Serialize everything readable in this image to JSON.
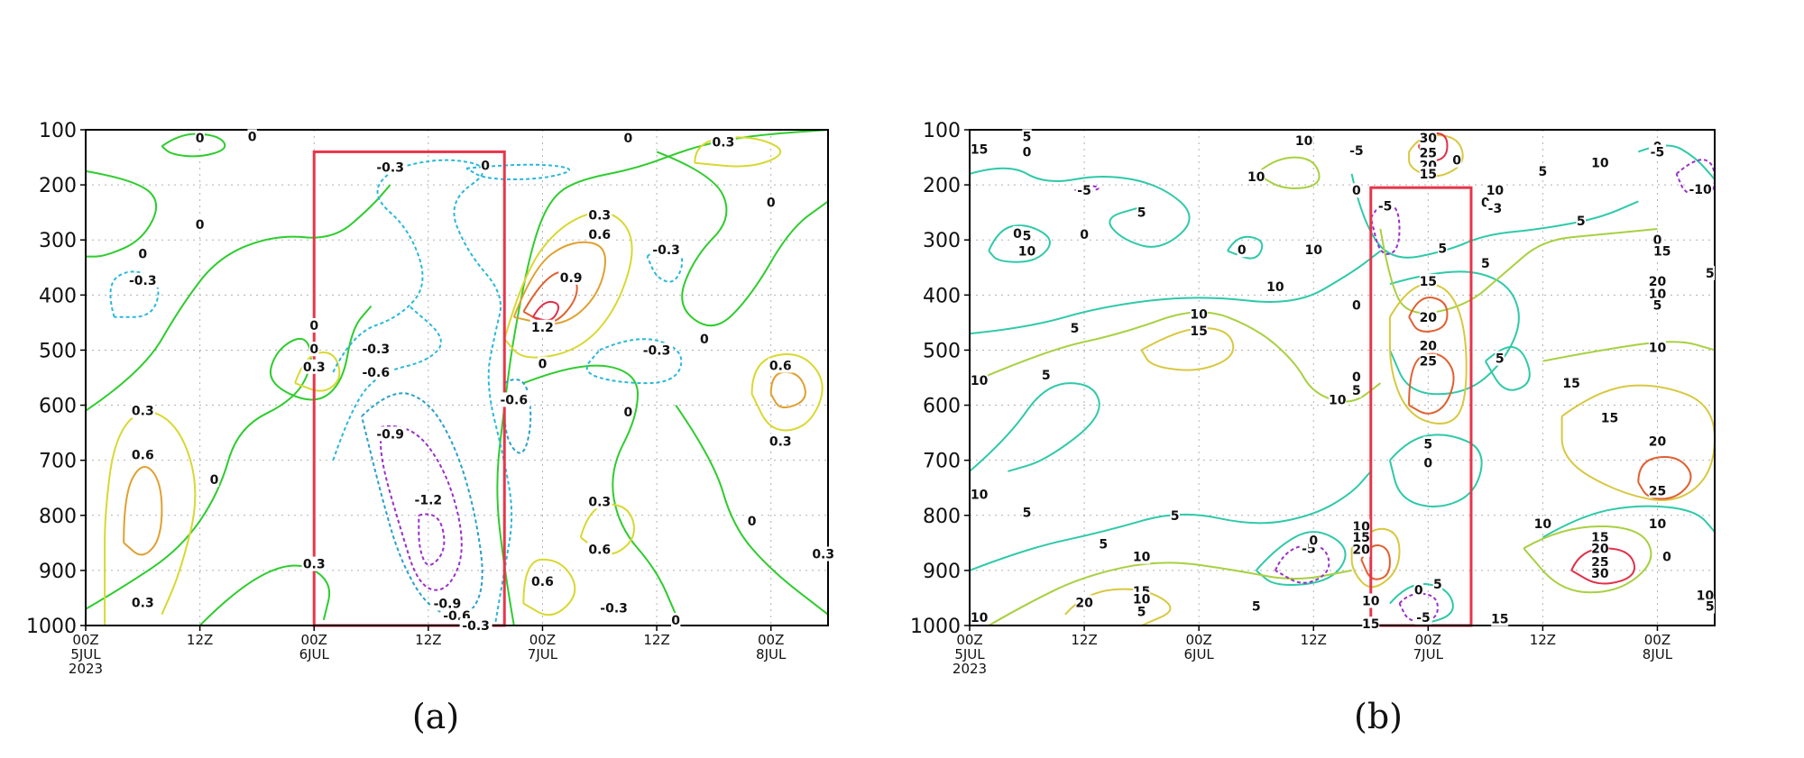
{
  "colors": {
    "contour_0": "#2ecc2e",
    "contour_pos_03": "#d8d832",
    "contour_pos_06": "#e0a030",
    "contour_pos_09": "#e06030",
    "contour_pos_12": "#e0304a",
    "contour_neg_03": "#2ab8d8",
    "contour_neg_06": "#2aa0c8",
    "contour_neg_09": "#9930c8",
    "contour_5": "#2ec9a8",
    "contour_10": "#a8d040",
    "contour_15": "#d8c840",
    "highlight_box": "#e8354a"
  },
  "chart_data": [
    {
      "type": "contour",
      "panel_label": "(a)",
      "x_ticks": [
        "00Z",
        "12Z",
        "00Z",
        "12Z",
        "00Z",
        "12Z",
        "00Z"
      ],
      "x_day_labels": [
        "5JUL",
        "6JUL",
        "7JUL",
        "8JUL"
      ],
      "x_year_label": "2023",
      "y_ticks": [
        "100",
        "200",
        "300",
        "400",
        "500",
        "600",
        "700",
        "800",
        "900",
        "1000"
      ],
      "ylim": [
        1000,
        100
      ],
      "grid": true,
      "highlight_box": {
        "x_range_hours": [
          24,
          44
        ],
        "y_range": [
          140,
          1000
        ]
      },
      "contour_labels": [
        {
          "text": "0",
          "t": 12,
          "p": 115
        },
        {
          "text": "0",
          "t": 17.5,
          "p": 112
        },
        {
          "text": "0",
          "t": 12,
          "p": 272
        },
        {
          "text": "0",
          "t": 6,
          "p": 325
        },
        {
          "text": "-0.3",
          "t": 6,
          "p": 373
        },
        {
          "text": "0",
          "t": 24,
          "p": 455
        },
        {
          "text": "0",
          "t": 24,
          "p": 498
        },
        {
          "text": "0.3",
          "t": 24,
          "p": 530
        },
        {
          "text": "-0.3",
          "t": 30.5,
          "p": 498
        },
        {
          "text": "-0.6",
          "t": 30.5,
          "p": 540
        },
        {
          "text": "-0.3",
          "t": 32,
          "p": 168
        },
        {
          "text": "0",
          "t": 42,
          "p": 165
        },
        {
          "text": "-0.9",
          "t": 32,
          "p": 652
        },
        {
          "text": "-1.2",
          "t": 36,
          "p": 772
        },
        {
          "text": "-0.9",
          "t": 38,
          "p": 960
        },
        {
          "text": "-0.6",
          "t": 39,
          "p": 982
        },
        {
          "text": "-0.3",
          "t": 41,
          "p": 1002
        },
        {
          "text": "-0.6",
          "t": 45,
          "p": 590
        },
        {
          "text": "0.3",
          "t": 6,
          "p": 610
        },
        {
          "text": "0.6",
          "t": 6,
          "p": 690
        },
        {
          "text": "0",
          "t": 13.5,
          "p": 735
        },
        {
          "text": "0.3",
          "t": 6,
          "p": 958
        },
        {
          "text": "0.3",
          "t": 24,
          "p": 888
        },
        {
          "text": "0.3",
          "t": 54,
          "p": 255
        },
        {
          "text": "0.6",
          "t": 54,
          "p": 290
        },
        {
          "text": "0.9",
          "t": 51,
          "p": 368
        },
        {
          "text": "1.2",
          "t": 48,
          "p": 458
        },
        {
          "text": "0",
          "t": 48,
          "p": 525
        },
        {
          "text": "-0.3",
          "t": 60,
          "p": 500
        },
        {
          "text": "0",
          "t": 57,
          "p": 115
        },
        {
          "text": "-0.3",
          "t": 61,
          "p": 318
        },
        {
          "text": "0",
          "t": 65,
          "p": 480
        },
        {
          "text": "0",
          "t": 57,
          "p": 612
        },
        {
          "text": "0.3",
          "t": 54,
          "p": 775
        },
        {
          "text": "0.6",
          "t": 54,
          "p": 862
        },
        {
          "text": "0.6",
          "t": 48,
          "p": 920
        },
        {
          "text": "-0.3",
          "t": 55.5,
          "p": 968
        },
        {
          "text": "0",
          "t": 62,
          "p": 990
        },
        {
          "text": "0.3",
          "t": 67,
          "p": 122
        },
        {
          "text": "0",
          "t": 72,
          "p": 232
        },
        {
          "text": "0.6",
          "t": 73,
          "p": 528
        },
        {
          "text": "0.3",
          "t": 73,
          "p": 665
        },
        {
          "text": "0",
          "t": 70,
          "p": 810
        },
        {
          "text": "0.3",
          "t": 77.5,
          "p": 870
        }
      ]
    },
    {
      "type": "contour",
      "panel_label": "(b)",
      "x_ticks": [
        "00Z",
        "12Z",
        "00Z",
        "12Z",
        "00Z",
        "12Z",
        "00Z"
      ],
      "x_day_labels": [
        "5JUL",
        "6JUL",
        "7JUL",
        "8JUL"
      ],
      "x_year_label": "2023",
      "y_ticks": [
        "100",
        "200",
        "300",
        "400",
        "500",
        "600",
        "700",
        "800",
        "900",
        "1000"
      ],
      "ylim": [
        1000,
        100
      ],
      "grid": true,
      "highlight_box": {
        "x_range_hours": [
          42,
          52.5
        ],
        "y_range": [
          205,
          1000
        ]
      },
      "contour_labels": [
        {
          "text": "5",
          "t": 6,
          "p": 112
        },
        {
          "text": "0",
          "t": 6,
          "p": 140
        },
        {
          "text": "-5",
          "t": 12,
          "p": 210
        },
        {
          "text": "5",
          "t": 18,
          "p": 250
        },
        {
          "text": "0",
          "t": 5,
          "p": 288
        },
        {
          "text": "5",
          "t": 6,
          "p": 292
        },
        {
          "text": "0",
          "t": 12,
          "p": 290
        },
        {
          "text": "10",
          "t": 6,
          "p": 320
        },
        {
          "text": "10",
          "t": 35,
          "p": 120
        },
        {
          "text": "10",
          "t": 30,
          "p": 185
        },
        {
          "text": "0",
          "t": 28.5,
          "p": 318
        },
        {
          "text": "10",
          "t": 36,
          "p": 318
        },
        {
          "text": "10",
          "t": 32,
          "p": 385
        },
        {
          "text": "5",
          "t": 11,
          "p": 460
        },
        {
          "text": "10",
          "t": 24,
          "p": 435
        },
        {
          "text": "15",
          "t": 24,
          "p": 465
        },
        {
          "text": "5",
          "t": 8,
          "p": 545
        },
        {
          "text": "10",
          "t": 38.5,
          "p": 590
        },
        {
          "text": "-5",
          "t": 40.5,
          "p": 138
        },
        {
          "text": "30",
          "t": 48,
          "p": 115
        },
        {
          "text": "25",
          "t": 48,
          "p": 142
        },
        {
          "text": "20",
          "t": 48,
          "p": 165
        },
        {
          "text": "15",
          "t": 48,
          "p": 180
        },
        {
          "text": "0",
          "t": 51,
          "p": 155
        },
        {
          "text": "5",
          "t": 60,
          "p": 175
        },
        {
          "text": "10",
          "t": 66,
          "p": 160
        },
        {
          "text": "0",
          "t": 72,
          "p": 130
        },
        {
          "text": "0",
          "t": 40.5,
          "p": 210
        },
        {
          "text": "-5",
          "t": 43.5,
          "p": 238
        },
        {
          "text": "10",
          "t": 55,
          "p": 210
        },
        {
          "text": "0",
          "t": 54,
          "p": 232
        },
        {
          "text": "-3",
          "t": 55,
          "p": 242
        },
        {
          "text": "5",
          "t": 64,
          "p": 265
        },
        {
          "text": "5",
          "t": 49.5,
          "p": 315
        },
        {
          "text": "5",
          "t": 54,
          "p": 342
        },
        {
          "text": "15",
          "t": 48,
          "p": 375
        },
        {
          "text": "0",
          "t": 40.5,
          "p": 418
        },
        {
          "text": "20",
          "t": 48,
          "p": 440
        },
        {
          "text": "20",
          "t": 48,
          "p": 492
        },
        {
          "text": "5",
          "t": 55.5,
          "p": 515
        },
        {
          "text": "25",
          "t": 48,
          "p": 520
        },
        {
          "text": "0",
          "t": 40.5,
          "p": 548
        },
        {
          "text": "5",
          "t": 40.5,
          "p": 573
        },
        {
          "text": "5",
          "t": 48,
          "p": 670
        },
        {
          "text": "0",
          "t": 48,
          "p": 705
        },
        {
          "text": "10",
          "t": 72,
          "p": 495
        },
        {
          "text": "15",
          "t": 63,
          "p": 560
        },
        {
          "text": "15",
          "t": 67,
          "p": 623
        },
        {
          "text": "20",
          "t": 72,
          "p": 665
        },
        {
          "text": "25",
          "t": 72,
          "p": 755
        },
        {
          "text": "10",
          "t": 60,
          "p": 815
        },
        {
          "text": "10",
          "t": 72,
          "p": 815
        },
        {
          "text": "15",
          "t": 66,
          "p": 840
        },
        {
          "text": "20",
          "t": 66,
          "p": 860
        },
        {
          "text": "25",
          "t": 66,
          "p": 885
        },
        {
          "text": "30",
          "t": 66,
          "p": 905
        },
        {
          "text": "0",
          "t": 73,
          "p": 875
        },
        {
          "text": "-5",
          "t": 72,
          "p": 140
        },
        {
          "text": "-10",
          "t": 76.5,
          "p": 208
        },
        {
          "text": "0",
          "t": 72,
          "p": 300
        },
        {
          "text": "15",
          "t": 72.5,
          "p": 320
        },
        {
          "text": "20",
          "t": 72,
          "p": 375
        },
        {
          "text": "10",
          "t": 72,
          "p": 398
        },
        {
          "text": "5",
          "t": 72,
          "p": 418
        },
        {
          "text": "5",
          "t": 6,
          "p": 795
        },
        {
          "text": "5",
          "t": 14,
          "p": 852
        },
        {
          "text": "5",
          "t": 21.5,
          "p": 800
        },
        {
          "text": "10",
          "t": 18,
          "p": 875
        },
        {
          "text": "-5",
          "t": 35.5,
          "p": 860
        },
        {
          "text": "0",
          "t": 36,
          "p": 845
        },
        {
          "text": "10",
          "t": 41,
          "p": 820
        },
        {
          "text": "15",
          "t": 41,
          "p": 840
        },
        {
          "text": "20",
          "t": 41,
          "p": 862
        },
        {
          "text": "15",
          "t": 18,
          "p": 938
        },
        {
          "text": "10",
          "t": 18,
          "p": 952
        },
        {
          "text": "20",
          "t": 12,
          "p": 958
        },
        {
          "text": "5",
          "t": 18,
          "p": 975
        },
        {
          "text": "5",
          "t": 30,
          "p": 965
        },
        {
          "text": "10",
          "t": 42,
          "p": 955
        },
        {
          "text": "0",
          "t": 47,
          "p": 935
        },
        {
          "text": "5",
          "t": 49,
          "p": 925
        },
        {
          "text": "-5",
          "t": 47.5,
          "p": 985
        },
        {
          "text": "15",
          "t": 42,
          "p": 997
        },
        {
          "text": "15",
          "t": 55.5,
          "p": 988
        },
        {
          "text": "10",
          "t": 77,
          "p": 945
        },
        {
          "text": "5",
          "t": 78,
          "p": 965
        },
        {
          "text": "10",
          "t": 1,
          "p": 985
        },
        {
          "text": "10",
          "t": 1,
          "p": 555
        },
        {
          "text": "10",
          "t": 1,
          "p": 762
        },
        {
          "text": "15",
          "t": 1,
          "p": 135
        },
        {
          "text": "5",
          "t": 77.5,
          "p": 360
        }
      ]
    }
  ]
}
